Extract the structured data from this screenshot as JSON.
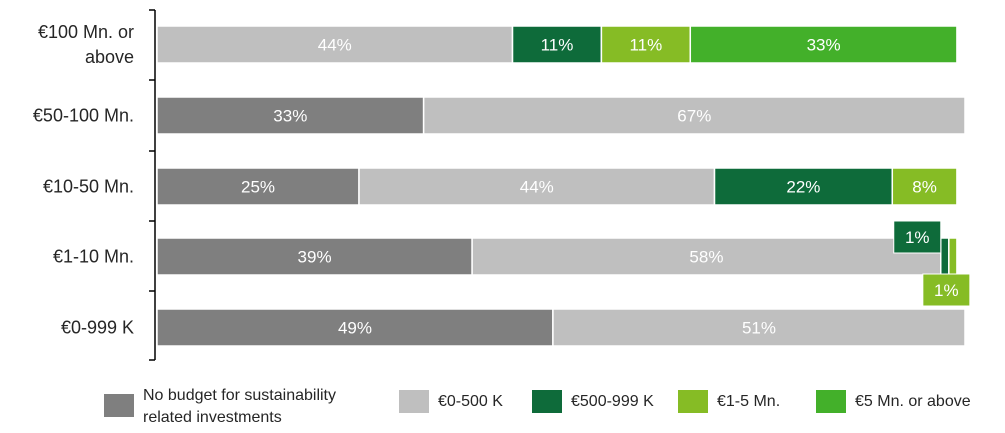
{
  "chart_data": {
    "type": "bar",
    "orientation": "horizontal",
    "stacked": true,
    "normalized_percent": true,
    "categories": [
      [
        "€100 Mn. or",
        "above"
      ],
      [
        "€50-100 Mn."
      ],
      [
        "€10-50 Mn."
      ],
      [
        "€1-10 Mn."
      ],
      [
        "€0-999 K"
      ]
    ],
    "series": [
      {
        "name": "No budget for sustainability related investments",
        "legend_lines": [
          "No budget for sustainability",
          "related investments"
        ],
        "color": "#7f7f7f",
        "values": [
          0,
          33,
          25,
          39,
          49
        ]
      },
      {
        "name": "€0-500 K",
        "color": "#bfbfbf",
        "values": [
          44,
          67,
          44,
          58,
          51
        ]
      },
      {
        "name": "€500-999 K",
        "color": "#0e6b3a",
        "values": [
          11,
          0,
          22,
          1,
          0
        ]
      },
      {
        "name": "€1-5 Mn.",
        "color": "#86bc25",
        "values": [
          11,
          0,
          8,
          1,
          0
        ]
      },
      {
        "name": "€5 Mn. or above",
        "color": "#43b02a",
        "values": [
          33,
          0,
          0,
          0,
          0
        ]
      }
    ],
    "data_labels": [
      "44%",
      "11%",
      "11%",
      "33%",
      "33%",
      "67%",
      "25%",
      "44%",
      "22%",
      "8%",
      "39%",
      "58%",
      "1%",
      "1%",
      "49%",
      "51%"
    ],
    "legend_position": "bottom",
    "grid": false,
    "xlim": [
      0,
      100
    ]
  }
}
